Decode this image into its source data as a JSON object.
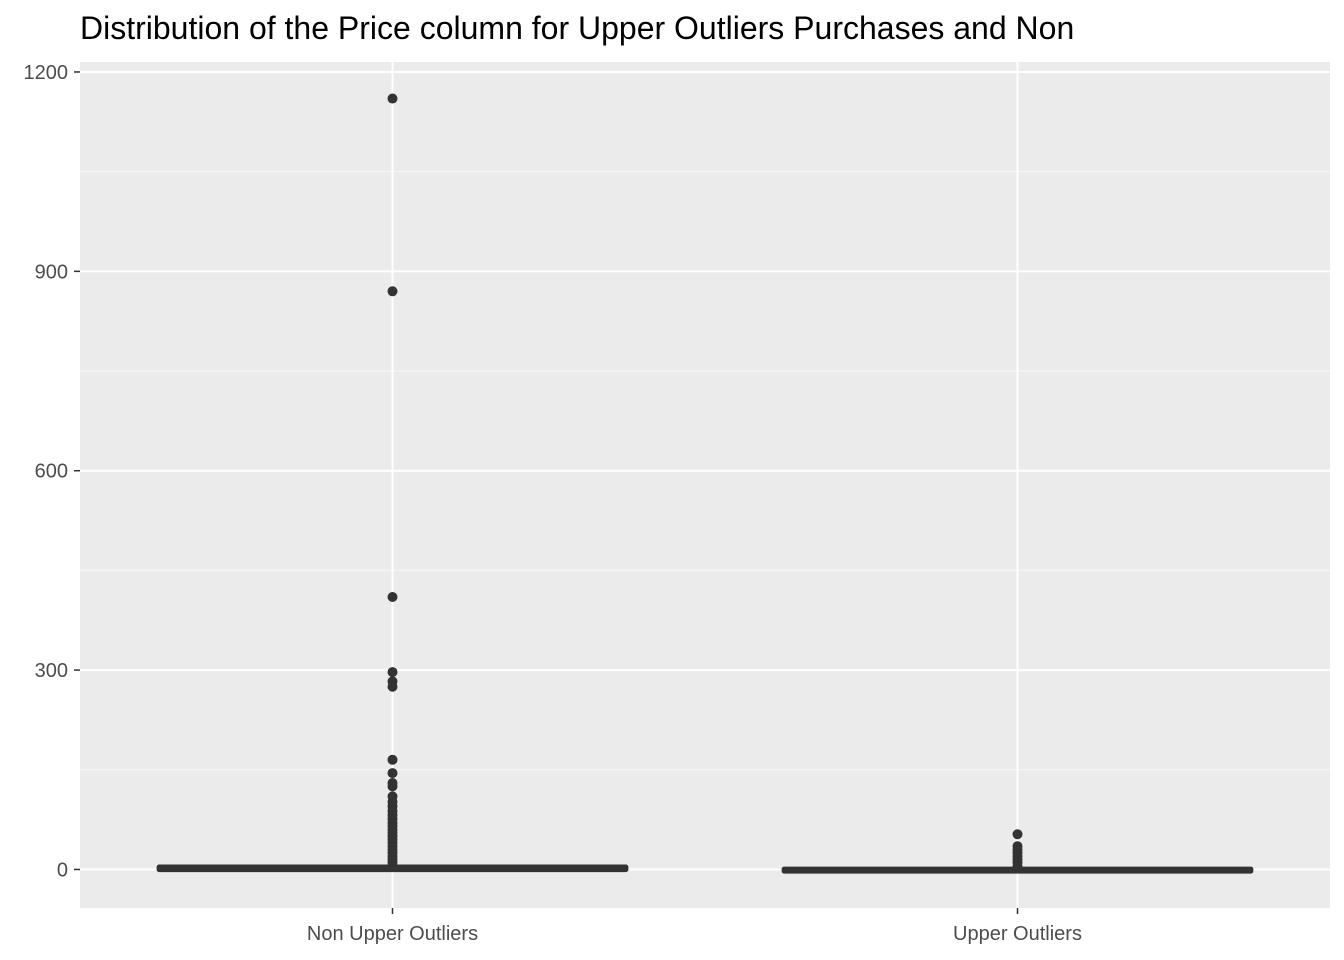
{
  "chart_data": {
    "type": "boxplot",
    "title": "Distribution of the Price column for Upper Outliers Purchases and Non",
    "xlabel": "",
    "ylabel": "",
    "categories": [
      "Non Upper Outliers",
      "Upper Outliers"
    ],
    "ylim": [
      -58,
      1215
    ],
    "yticks": [
      0,
      300,
      600,
      900,
      1200
    ],
    "ytick_labels": [
      "0",
      "300",
      "600",
      "900",
      "1200"
    ],
    "grid": true,
    "boxes": [
      {
        "category": "Non Upper Outliers",
        "q1": 0.5,
        "median": 1.5,
        "q3": 3.0,
        "whisker_low": 0,
        "whisker_high": 7,
        "outliers": [
          1160,
          870,
          410,
          297,
          283,
          275,
          165,
          145,
          130,
          125,
          110,
          102,
          95,
          88,
          82,
          76,
          70,
          65,
          60,
          55,
          50,
          45,
          40,
          35,
          30,
          25,
          20,
          15,
          10
        ]
      },
      {
        "category": "Upper Outliers",
        "q1": -1.0,
        "median": -0.5,
        "q3": -0.2,
        "whisker_low": -1,
        "whisker_high": 1,
        "outliers": [
          53,
          35,
          30,
          25,
          20,
          15,
          10,
          5
        ]
      }
    ],
    "colors": {
      "panel_background": "#ebebeb",
      "grid_major": "#ffffff",
      "grid_minor": "#f5f5f5",
      "box_line": "#333333",
      "point": "#333333",
      "tick_text": "#4d4d4d"
    }
  }
}
